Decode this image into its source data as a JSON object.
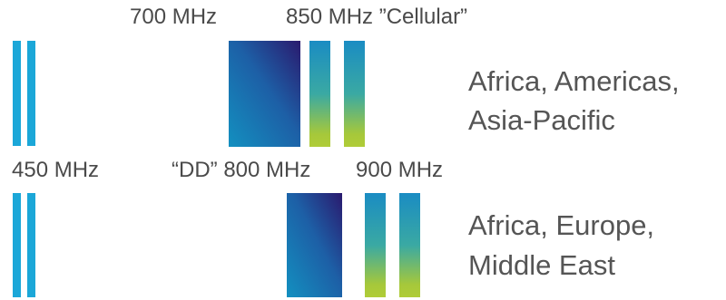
{
  "top_row": {
    "labels": {
      "band_700": "700 MHz",
      "band_850": "850 MHz ”Cellular”"
    },
    "region": {
      "line1": "Africa, Americas,",
      "line2": "Asia-Pacific"
    }
  },
  "bottom_row": {
    "labels": {
      "band_450": "450 MHz",
      "band_dd800": "“DD” 800 MHz",
      "band_900": "900 MHz"
    },
    "region": {
      "line1": "Africa, Europe,",
      "line2": "Middle East"
    }
  },
  "colors": {
    "thin_bar": "#1ba7d8",
    "block_dark": "#2a1a6e",
    "block_light": "#1390c0",
    "strip_top": "#1a8cc3",
    "strip_bottom": "#b0cc38"
  }
}
